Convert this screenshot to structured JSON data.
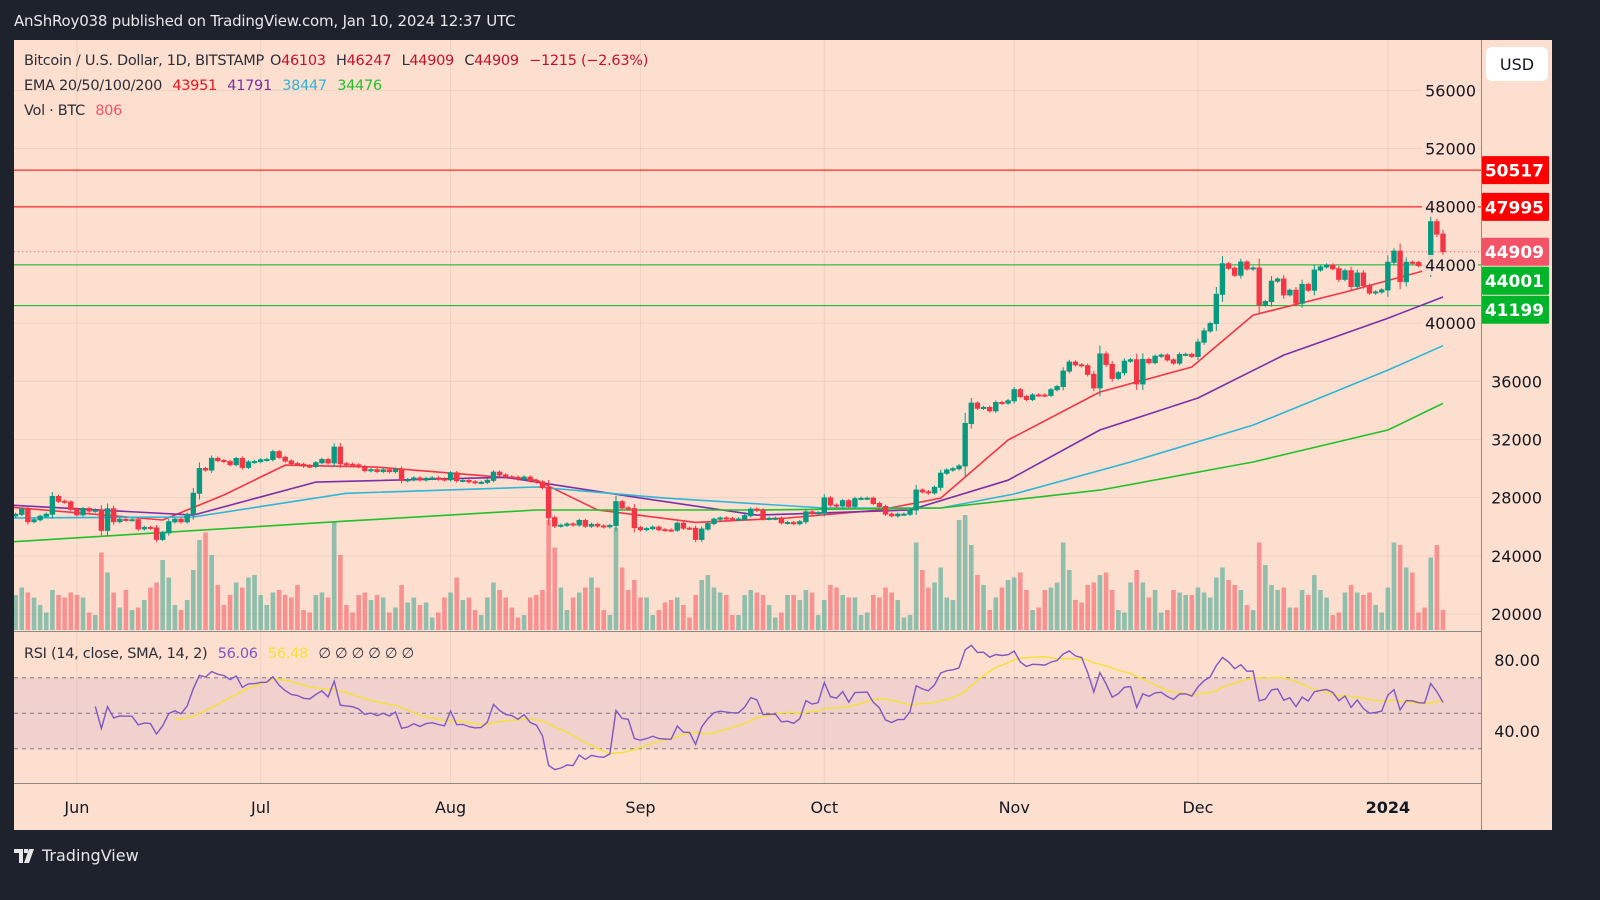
{
  "header": {
    "published": "AnShRoy038 published on TradingView.com, Jan 10, 2024 12:37 UTC"
  },
  "legend": {
    "symbol": "Bitcoin / U.S. Dollar, 1D, BITSTAMP",
    "open_label": "O",
    "open": "46103",
    "high_label": "H",
    "high": "46247",
    "low_label": "L",
    "low": "44909",
    "close_label": "C",
    "close": "44909",
    "change": "−1215 (−2.63%)",
    "ema_label": "EMA 20/50/100/200",
    "ema20": "43951",
    "ema50": "41791",
    "ema100": "38447",
    "ema200": "34476",
    "vol_label": "Vol · BTC",
    "vol": "806",
    "rsi_label": "RSI (14, close, SMA, 14, 2)",
    "rsi": "56.06",
    "rsi_sma": "56.48",
    "rsi_extra": "∅ ∅ ∅ ∅ ∅ ∅"
  },
  "currency_button": "USD",
  "footer": {
    "brand": "TradingView"
  },
  "colors": {
    "background": "#fddfd0",
    "up": "#089981",
    "down": "#f23645",
    "ema20": "#f23645",
    "ema50": "#7b2fa8",
    "ema100": "#2fb5d6",
    "ema200": "#22c02a",
    "rsi": "#7e57c2",
    "rsi_sma": "#f5e13a",
    "resistance": "#ff0000",
    "support": "#00b52a",
    "last_price": "#f25366"
  },
  "chart_data": {
    "type": "candlestick",
    "price_ticks": [
      20000,
      24000,
      28000,
      32000,
      36000,
      40000,
      44000,
      48000,
      52000,
      56000
    ],
    "price_range": [
      18800,
      58000
    ],
    "time_labels": [
      {
        "label": "Jun",
        "month": "2023-06"
      },
      {
        "label": "Jul",
        "month": "2023-07"
      },
      {
        "label": "Aug",
        "month": "2023-08"
      },
      {
        "label": "Sep",
        "month": "2023-09"
      },
      {
        "label": "Oct",
        "month": "2023-10"
      },
      {
        "label": "Nov",
        "month": "2023-11"
      },
      {
        "label": "Dec",
        "month": "2023-12"
      },
      {
        "label": "2024",
        "month": "2024-01"
      }
    ],
    "levels": [
      {
        "value": "50517",
        "kind": "resistance"
      },
      {
        "value": "47995",
        "kind": "resistance"
      },
      {
        "value": "44909",
        "kind": "last_price"
      },
      {
        "value": "44001",
        "kind": "support"
      },
      {
        "value": "41199",
        "kind": "support"
      }
    ],
    "months": [
      {
        "month": "2023-05",
        "closes": [
          26750,
          26850,
          27200,
          26350,
          26480,
          26720,
          26860,
          28080,
          27750,
          27700,
          27200
        ],
        "volumes": [
          1100,
          1400,
          1700,
          1500,
          1300,
          1000,
          700,
          1600,
          1400,
          1300,
          1500
        ]
      },
      {
        "month": "2023-06",
        "closes": [
          26820,
          27250,
          27080,
          27130,
          25750,
          27230,
          26350,
          26500,
          26480,
          26480,
          25850,
          25950,
          25920,
          25130,
          25580,
          26340,
          26520,
          26340,
          26850,
          28300,
          30000,
          29900,
          30700,
          30550,
          30480,
          30270,
          30690,
          30080,
          30450,
          30480
        ],
        "volumes": [
          1400,
          1300,
          700,
          600,
          3100,
          2300,
          1500,
          900,
          1600,
          800,
          900,
          1200,
          1700,
          1900,
          2800,
          2100,
          1000,
          800,
          1200,
          2400,
          3600,
          3900,
          3000,
          1800,
          1000,
          1400,
          1900,
          1700,
          2100,
          2200
        ]
      },
      {
        "month": "2023-07",
        "closes": [
          30600,
          30620,
          31160,
          30770,
          30520,
          30340,
          30290,
          30170,
          30140,
          30400,
          30620,
          30390,
          31470,
          30330,
          30290,
          30250,
          30130,
          29860,
          29920,
          29800,
          29910,
          29790,
          29950,
          29180,
          29230,
          29350,
          29220,
          29320,
          29350,
          29280,
          29230
        ],
        "volumes": [
          1400,
          1000,
          1500,
          1600,
          1400,
          1300,
          1800,
          800,
          700,
          1400,
          1500,
          1300,
          4300,
          3000,
          1000,
          700,
          1400,
          1500,
          1200,
          1400,
          1300,
          700,
          900,
          1800,
          1100,
          1300,
          1000,
          1100,
          500,
          700,
          1300
        ]
      },
      {
        "month": "2023-08",
        "closes": [
          29700,
          29170,
          29180,
          29090,
          29040,
          29050,
          29190,
          29750,
          29560,
          29430,
          29400,
          29280,
          29410,
          29170,
          29080,
          28700,
          26620,
          26050,
          26100,
          26190,
          26120,
          26430,
          26040,
          26160,
          26050,
          26000,
          26090,
          27720,
          27290,
          27240,
          25940
        ],
        "volumes": [
          1500,
          2100,
          1200,
          1300,
          800,
          600,
          1300,
          1900,
          1600,
          1300,
          900,
          500,
          600,
          1300,
          1400,
          1600,
          4400,
          3300,
          1700,
          800,
          1300,
          1500,
          1700,
          2100,
          1700,
          800,
          600,
          4100,
          2500,
          1600,
          2000
        ]
      },
      {
        "month": "2023-09",
        "closes": [
          25800,
          25870,
          25970,
          25800,
          25770,
          25760,
          26240,
          25900,
          25890,
          25130,
          25840,
          26220,
          26520,
          26600,
          26560,
          26530,
          26530,
          26760,
          27210,
          27130,
          26560,
          26570,
          26580,
          26270,
          26290,
          26210,
          26350,
          27020,
          26910,
          26960
        ],
        "volumes": [
          1300,
          1300,
          600,
          800,
          1100,
          1200,
          1300,
          1000,
          500,
          1400,
          2000,
          2200,
          1700,
          1500,
          1400,
          600,
          600,
          1400,
          1600,
          1500,
          1400,
          1000,
          500,
          700,
          1400,
          1400,
          1200,
          1600,
          1500,
          600
        ]
      },
      {
        "month": "2023-10",
        "closes": [
          27980,
          27490,
          27430,
          27790,
          27400,
          27930,
          27950,
          27960,
          27600,
          27390,
          26870,
          26750,
          26860,
          26860,
          27150,
          28520,
          28400,
          28330,
          28710,
          29680,
          29900,
          29990,
          30180,
          33100,
          34500,
          34150,
          34200,
          33970,
          34540,
          34500,
          34660
        ],
        "volumes": [
          1200,
          1800,
          1700,
          1400,
          1300,
          1300,
          600,
          700,
          1400,
          1300,
          1700,
          1500,
          1200,
          500,
          600,
          3500,
          2400,
          1700,
          1900,
          2500,
          1300,
          1200,
          4400,
          4600,
          3400,
          2200,
          1800,
          800,
          1300,
          1700,
          2000
        ]
      },
      {
        "month": "2023-11",
        "closes": [
          35420,
          34950,
          34750,
          35060,
          35050,
          35030,
          35420,
          35640,
          36700,
          37320,
          37130,
          37070,
          36480,
          35550,
          37880,
          37160,
          36200,
          36590,
          37380,
          37480,
          35820,
          37500,
          37280,
          37720,
          37800,
          37470,
          37250,
          37840,
          37850,
          37710
        ],
        "volumes": [
          2100,
          2300,
          1600,
          800,
          900,
          1600,
          1700,
          1900,
          3500,
          2400,
          1200,
          1100,
          1800,
          1900,
          2200,
          2300,
          1600,
          800,
          700,
          1900,
          2400,
          1900,
          1300,
          1600,
          700,
          800,
          1600,
          1500,
          1400,
          1400
        ]
      },
      {
        "month": "2023-12",
        "closes": [
          38690,
          39460,
          39970,
          41980,
          44080,
          43770,
          43290,
          44200,
          43720,
          43790,
          41240,
          41480,
          42880,
          43030,
          41940,
          42260,
          41370,
          42660,
          42260,
          43650,
          43860,
          43990,
          43740,
          43010,
          43600,
          42520,
          43440,
          42580,
          42070,
          42140,
          42280
        ],
        "volumes": [
          1700,
          1500,
          1300,
          2100,
          2500,
          2000,
          1800,
          1600,
          1000,
          800,
          3500,
          2600,
          1800,
          1600,
          1700,
          900,
          900,
          1600,
          1400,
          2200,
          1600,
          1300,
          600,
          700,
          1500,
          1800,
          1500,
          1400,
          1500,
          1000,
          700
        ]
      },
      {
        "month": "2024-01",
        "closes": [
          44180,
          44950,
          42850,
          44180,
          44160,
          43960,
          43930,
          46970,
          46120,
          44909
        ],
        "volumes": [
          1700,
          3500,
          3400,
          2500,
          2300,
          700,
          900,
          2900,
          3400,
          806
        ]
      }
    ],
    "ema_series": [
      {
        "name": "EMA 20",
        "color_key": "ema20",
        "points": [
          [
            "2023-05-21",
            27350
          ],
          [
            "2023-06-15",
            26460
          ],
          [
            "2023-06-25",
            28180
          ],
          [
            "2023-07-05",
            30240
          ],
          [
            "2023-07-20",
            30100
          ],
          [
            "2023-08-05",
            29550
          ],
          [
            "2023-08-15",
            29200
          ],
          [
            "2023-08-25",
            27150
          ],
          [
            "2023-09-10",
            26300
          ],
          [
            "2023-09-25",
            26600
          ],
          [
            "2023-10-10",
            27150
          ],
          [
            "2023-10-20",
            27970
          ],
          [
            "2023-10-31",
            31960
          ],
          [
            "2023-11-15",
            35260
          ],
          [
            "2023-11-30",
            36980
          ],
          [
            "2023-12-10",
            40550
          ],
          [
            "2023-12-25",
            42130
          ],
          [
            "2024-01-10",
            43951
          ]
        ]
      },
      {
        "name": "EMA 50",
        "color_key": "ema50",
        "points": [
          [
            "2023-05-21",
            27490
          ],
          [
            "2023-06-20",
            26800
          ],
          [
            "2023-07-10",
            29070
          ],
          [
            "2023-08-10",
            29400
          ],
          [
            "2023-08-31",
            28040
          ],
          [
            "2023-09-20",
            26800
          ],
          [
            "2023-10-15",
            27150
          ],
          [
            "2023-10-31",
            29200
          ],
          [
            "2023-11-15",
            32650
          ],
          [
            "2023-12-01",
            34850
          ],
          [
            "2023-12-15",
            37800
          ],
          [
            "2024-01-01",
            40340
          ],
          [
            "2024-01-10",
            41791
          ]
        ]
      },
      {
        "name": "EMA 100",
        "color_key": "ema100",
        "points": [
          [
            "2023-05-21",
            26600
          ],
          [
            "2023-06-20",
            26670
          ],
          [
            "2023-07-15",
            28300
          ],
          [
            "2023-08-15",
            28730
          ],
          [
            "2023-09-05",
            27970
          ],
          [
            "2023-10-01",
            27290
          ],
          [
            "2023-10-20",
            27290
          ],
          [
            "2023-11-01",
            28250
          ],
          [
            "2023-11-20",
            30450
          ],
          [
            "2023-12-10",
            32990
          ],
          [
            "2024-01-01",
            36770
          ],
          [
            "2024-01-10",
            38447
          ]
        ]
      },
      {
        "name": "EMA 200",
        "color_key": "ema200",
        "points": [
          [
            "2023-05-21",
            24950
          ],
          [
            "2023-07-15",
            26390
          ],
          [
            "2023-08-15",
            27150
          ],
          [
            "2023-09-20",
            27150
          ],
          [
            "2023-10-20",
            27290
          ],
          [
            "2023-11-15",
            28520
          ],
          [
            "2023-12-10",
            30450
          ],
          [
            "2024-01-01",
            32650
          ],
          [
            "2024-01-10",
            34476
          ]
        ]
      }
    ],
    "rsi": {
      "period": 14,
      "sma_period": 14,
      "ticks": [
        "80.00",
        "40.00"
      ],
      "bands": [
        70,
        50,
        30
      ]
    }
  }
}
